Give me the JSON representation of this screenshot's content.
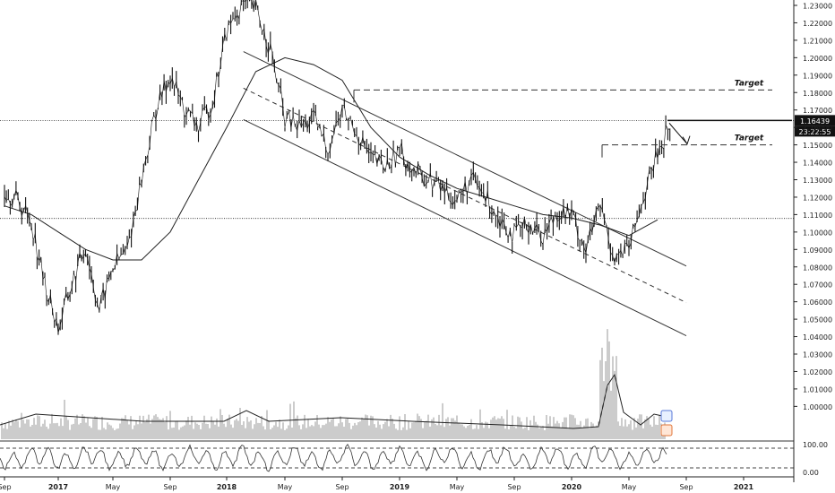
{
  "chart_data": {
    "type": "line",
    "title": "",
    "xlabel": "",
    "ylabel": "",
    "x_tick_labels": [
      "Sep",
      "2017",
      "May",
      "Sep",
      "2018",
      "May",
      "Sep",
      "2019",
      "May",
      "Sep",
      "2020",
      "May",
      "Sep",
      "2021"
    ],
    "y_tick_labels": [
      "1.23000",
      "1.22000",
      "1.21000",
      "1.20000",
      "1.19000",
      "1.18000",
      "1.17000",
      "1.16000",
      "1.15000",
      "1.14000",
      "1.13000",
      "1.12000",
      "1.11000",
      "1.10000",
      "1.09000",
      "1.08000",
      "1.07000",
      "1.06000",
      "1.05000",
      "1.04000",
      "1.03000",
      "1.02000",
      "1.01000",
      "1.00000"
    ],
    "ylim": [
      0.995,
      1.235
    ],
    "oscillator_tick_labels": [
      "100.00",
      "0.00"
    ],
    "price": {
      "x": [
        "2016-09",
        "2016-10",
        "2016-11",
        "2016-12",
        "2017-01",
        "2017-02",
        "2017-03",
        "2017-04",
        "2017-05",
        "2017-06",
        "2017-07",
        "2017-08",
        "2017-09",
        "2017-10",
        "2017-11",
        "2017-12",
        "2018-01",
        "2018-02",
        "2018-03",
        "2018-04",
        "2018-05",
        "2018-06",
        "2018-07",
        "2018-08",
        "2018-09",
        "2018-10",
        "2018-11",
        "2018-12",
        "2019-01",
        "2019-02",
        "2019-03",
        "2019-04",
        "2019-05",
        "2019-06",
        "2019-07",
        "2019-08",
        "2019-09",
        "2019-10",
        "2019-11",
        "2019-12",
        "2020-01",
        "2020-02",
        "2020-03",
        "2020-04",
        "2020-05",
        "2020-06",
        "2020-07",
        "2020-08"
      ],
      "values": [
        1.125,
        1.118,
        1.106,
        1.07,
        1.045,
        1.07,
        1.092,
        1.055,
        1.08,
        1.09,
        1.13,
        1.17,
        1.19,
        1.17,
        1.16,
        1.175,
        1.215,
        1.23,
        1.228,
        1.205,
        1.165,
        1.16,
        1.165,
        1.148,
        1.17,
        1.158,
        1.142,
        1.137,
        1.147,
        1.135,
        1.13,
        1.125,
        1.118,
        1.13,
        1.12,
        1.108,
        1.098,
        1.105,
        1.098,
        1.112,
        1.11,
        1.09,
        1.115,
        1.085,
        1.09,
        1.12,
        1.145,
        1.164
      ]
    },
    "moving_average": {
      "x": [
        "2016-09",
        "2016-11",
        "2017-01",
        "2017-03",
        "2017-05",
        "2017-07",
        "2017-09",
        "2017-11",
        "2018-01",
        "2018-03",
        "2018-05",
        "2018-07",
        "2018-09",
        "2018-11",
        "2019-01",
        "2019-03",
        "2019-05",
        "2019-07",
        "2019-09",
        "2019-11",
        "2020-01",
        "2020-03",
        "2020-05",
        "2020-07"
      ],
      "values": [
        1.115,
        1.11,
        1.1,
        1.09,
        1.084,
        1.084,
        1.1,
        1.13,
        1.16,
        1.192,
        1.2,
        1.196,
        1.187,
        1.16,
        1.143,
        1.133,
        1.125,
        1.12,
        1.115,
        1.11,
        1.108,
        1.104,
        1.098,
        1.107
      ]
    },
    "channel_upper": {
      "x": [
        "2018-04",
        "2020-09"
      ],
      "values": [
        1.2035,
        1.0805
      ]
    },
    "channel_mid": {
      "x": [
        "2018-04",
        "2020-09"
      ],
      "values": [
        1.1825,
        1.0595
      ]
    },
    "channel_lower": {
      "x": [
        "2018-04",
        "2020-09"
      ],
      "values": [
        1.1645,
        1.0405
      ]
    },
    "horizontal_levels": [
      1.164,
      1.1078
    ],
    "targets": [
      {
        "label": "Target",
        "value": 1.1815
      },
      {
        "label": "Target",
        "value": 1.15
      }
    ],
    "current_price_label": "1.16439",
    "countdown_label": "23:22:55",
    "grid": false,
    "legend": "none"
  }
}
